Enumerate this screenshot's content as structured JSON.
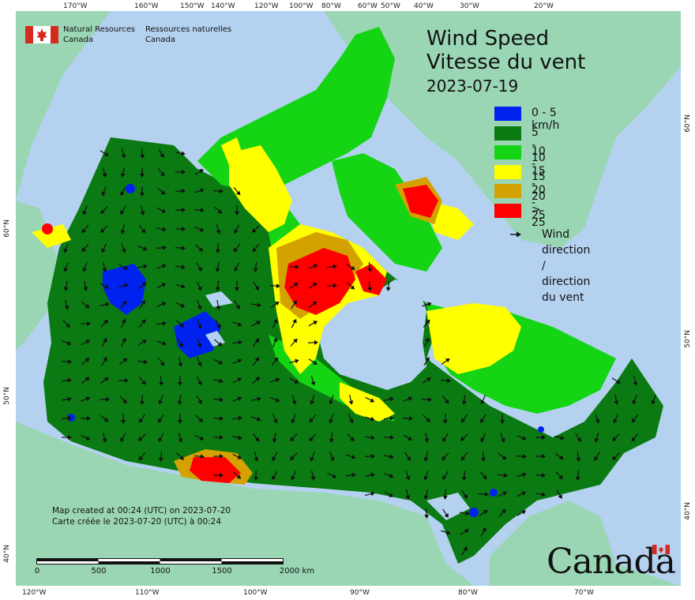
{
  "map": {
    "title_en": "Wind Speed",
    "title_fr": "Vitesse du vent",
    "date": "2023-07-19",
    "legend": [
      {
        "label": "0 - 5 km/h",
        "color": "#0022ee"
      },
      {
        "label": "5 - 10",
        "color": "#0b7a12"
      },
      {
        "label": "10 - 15",
        "color": "#14d414"
      },
      {
        "label": "15 - 20",
        "color": "#ffff00"
      },
      {
        "label": "20 - 25",
        "color": "#d4a200"
      },
      {
        "label": "> 25",
        "color": "#ff0000"
      }
    ],
    "wind_direction_label_en": "Wind direction /",
    "wind_direction_label_fr": "direction du vent",
    "agency_en_1": "Natural Resources",
    "agency_en_2": "Canada",
    "agency_fr_1": "Ressources naturelles",
    "agency_fr_2": "Canada",
    "created_en": "Map created at 00:24 (UTC) on 2023-07-20",
    "created_fr": "Carte créée le 2023-07-20 (UTC) à 00:24",
    "scale_labels": [
      "0",
      "500",
      "1000",
      "1500",
      "2000  km"
    ],
    "wordmark": "Canada",
    "top_longitudes": [
      "170°W",
      "160°W",
      "150°W",
      "140°W",
      "120°W",
      "100°W",
      "80°W",
      "60°W",
      "50°W",
      "40°W",
      "30°W",
      "20°W"
    ],
    "bottom_longitudes": [
      "120°W",
      "110°W",
      "100°W",
      "90°W",
      "80°W",
      "70°W"
    ],
    "left_latitudes": [
      "60°N",
      "50°N",
      "40°N"
    ],
    "right_latitudes": [
      "60°N",
      "50°N",
      "40°N"
    ],
    "colors": {
      "ocean": "#b4d2f0",
      "land_outside": "#9ad6b4",
      "calm": "#0022ee",
      "light": "#0b7a12",
      "moderate": "#14d414",
      "fresh": "#ffff00",
      "strong": "#d4a200",
      "gale": "#ff0000"
    }
  }
}
